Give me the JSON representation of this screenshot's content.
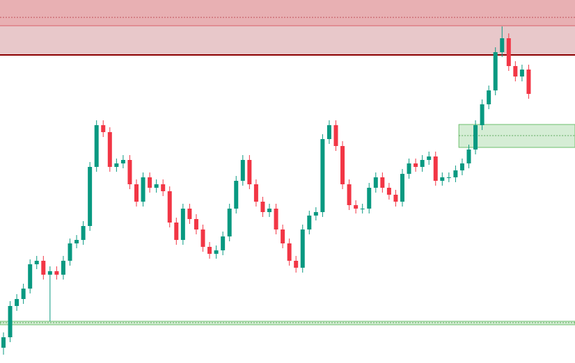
{
  "chart_data": {
    "type": "candlestick",
    "ylim": [
      0,
      522
    ],
    "up_color": "#089981",
    "down_color": "#f23645",
    "open": [
      22,
      37,
      82,
      92,
      107,
      142,
      147,
      127,
      132,
      127,
      147,
      172,
      177,
      197,
      282,
      342,
      332,
      282,
      287,
      292,
      257,
      232,
      267,
      252,
      257,
      247,
      202,
      177,
      222,
      207,
      192,
      167,
      157,
      162,
      182,
      222,
      262,
      292,
      257,
      232,
      217,
      222,
      192,
      172,
      147,
      137,
      192,
      212,
      217,
      322,
      342,
      312,
      257,
      227,
      222,
      222,
      252,
      267,
      252,
      242,
      232,
      272,
      287,
      282,
      292,
      297,
      262,
      267,
      267,
      277,
      287,
      307,
      342,
      372,
      392,
      447,
      467,
      427,
      412,
      422
    ],
    "high": [
      44,
      89,
      99,
      114,
      149,
      154,
      154,
      139,
      139,
      154,
      179,
      184,
      204,
      289,
      349,
      349,
      339,
      294,
      299,
      299,
      264,
      274,
      274,
      264,
      264,
      254,
      209,
      229,
      229,
      214,
      199,
      174,
      169,
      189,
      229,
      269,
      299,
      299,
      264,
      239,
      229,
      229,
      199,
      179,
      154,
      199,
      219,
      224,
      329,
      349,
      349,
      319,
      264,
      234,
      229,
      259,
      274,
      274,
      259,
      249,
      279,
      294,
      294,
      299,
      304,
      304,
      274,
      274,
      284,
      294,
      314,
      349,
      379,
      399,
      454,
      484,
      474,
      434,
      429,
      429
    ],
    "low": [
      12,
      30,
      75,
      85,
      100,
      135,
      120,
      60,
      120,
      120,
      140,
      165,
      170,
      190,
      275,
      325,
      275,
      275,
      280,
      250,
      225,
      225,
      245,
      245,
      240,
      195,
      170,
      170,
      200,
      185,
      160,
      150,
      150,
      155,
      175,
      215,
      255,
      250,
      225,
      210,
      210,
      185,
      165,
      140,
      130,
      130,
      185,
      205,
      210,
      315,
      305,
      250,
      220,
      215,
      215,
      215,
      245,
      245,
      235,
      225,
      225,
      265,
      275,
      275,
      285,
      255,
      255,
      260,
      260,
      270,
      280,
      300,
      335,
      365,
      385,
      440,
      420,
      405,
      405,
      380
    ],
    "close": [
      37,
      82,
      92,
      107,
      142,
      147,
      127,
      132,
      127,
      147,
      172,
      177,
      197,
      282,
      342,
      332,
      282,
      287,
      292,
      257,
      232,
      267,
      252,
      257,
      247,
      202,
      177,
      222,
      207,
      192,
      167,
      157,
      162,
      182,
      222,
      262,
      292,
      257,
      232,
      217,
      222,
      192,
      172,
      147,
      137,
      192,
      212,
      217,
      322,
      342,
      312,
      257,
      227,
      222,
      222,
      252,
      267,
      252,
      242,
      232,
      272,
      287,
      282,
      292,
      297,
      262,
      267,
      267,
      277,
      287,
      307,
      342,
      372,
      392,
      447,
      467,
      427,
      412,
      422,
      387
    ],
    "zones": [
      {
        "low": 443,
        "high": 522,
        "start": 0,
        "color": "#e8c8ca"
      },
      {
        "low": 485,
        "high": 522,
        "start": 0,
        "color": "#e8b0b3"
      },
      {
        "low": 310,
        "high": 343,
        "start": 69,
        "color": "#d5edd5",
        "border": "#6cbf6c"
      },
      {
        "low": 55,
        "high": 60,
        "start": 0,
        "color": "#d5edd5",
        "border": "#6cbf6c"
      }
    ],
    "levels": [
      {
        "value": 497,
        "color": "#c0505a",
        "dash": true,
        "start": 0
      },
      {
        "value": 485,
        "color": "#d9606a",
        "dash": false,
        "start": 0
      },
      {
        "value": 443,
        "color": "#8b0000",
        "dash": false,
        "start": 0,
        "thick": true
      },
      {
        "value": 327,
        "color": "#5aa85a",
        "dash": true,
        "start": 69
      },
      {
        "value": 58,
        "color": "#5aa85a",
        "dash": true,
        "start": 0
      }
    ]
  }
}
